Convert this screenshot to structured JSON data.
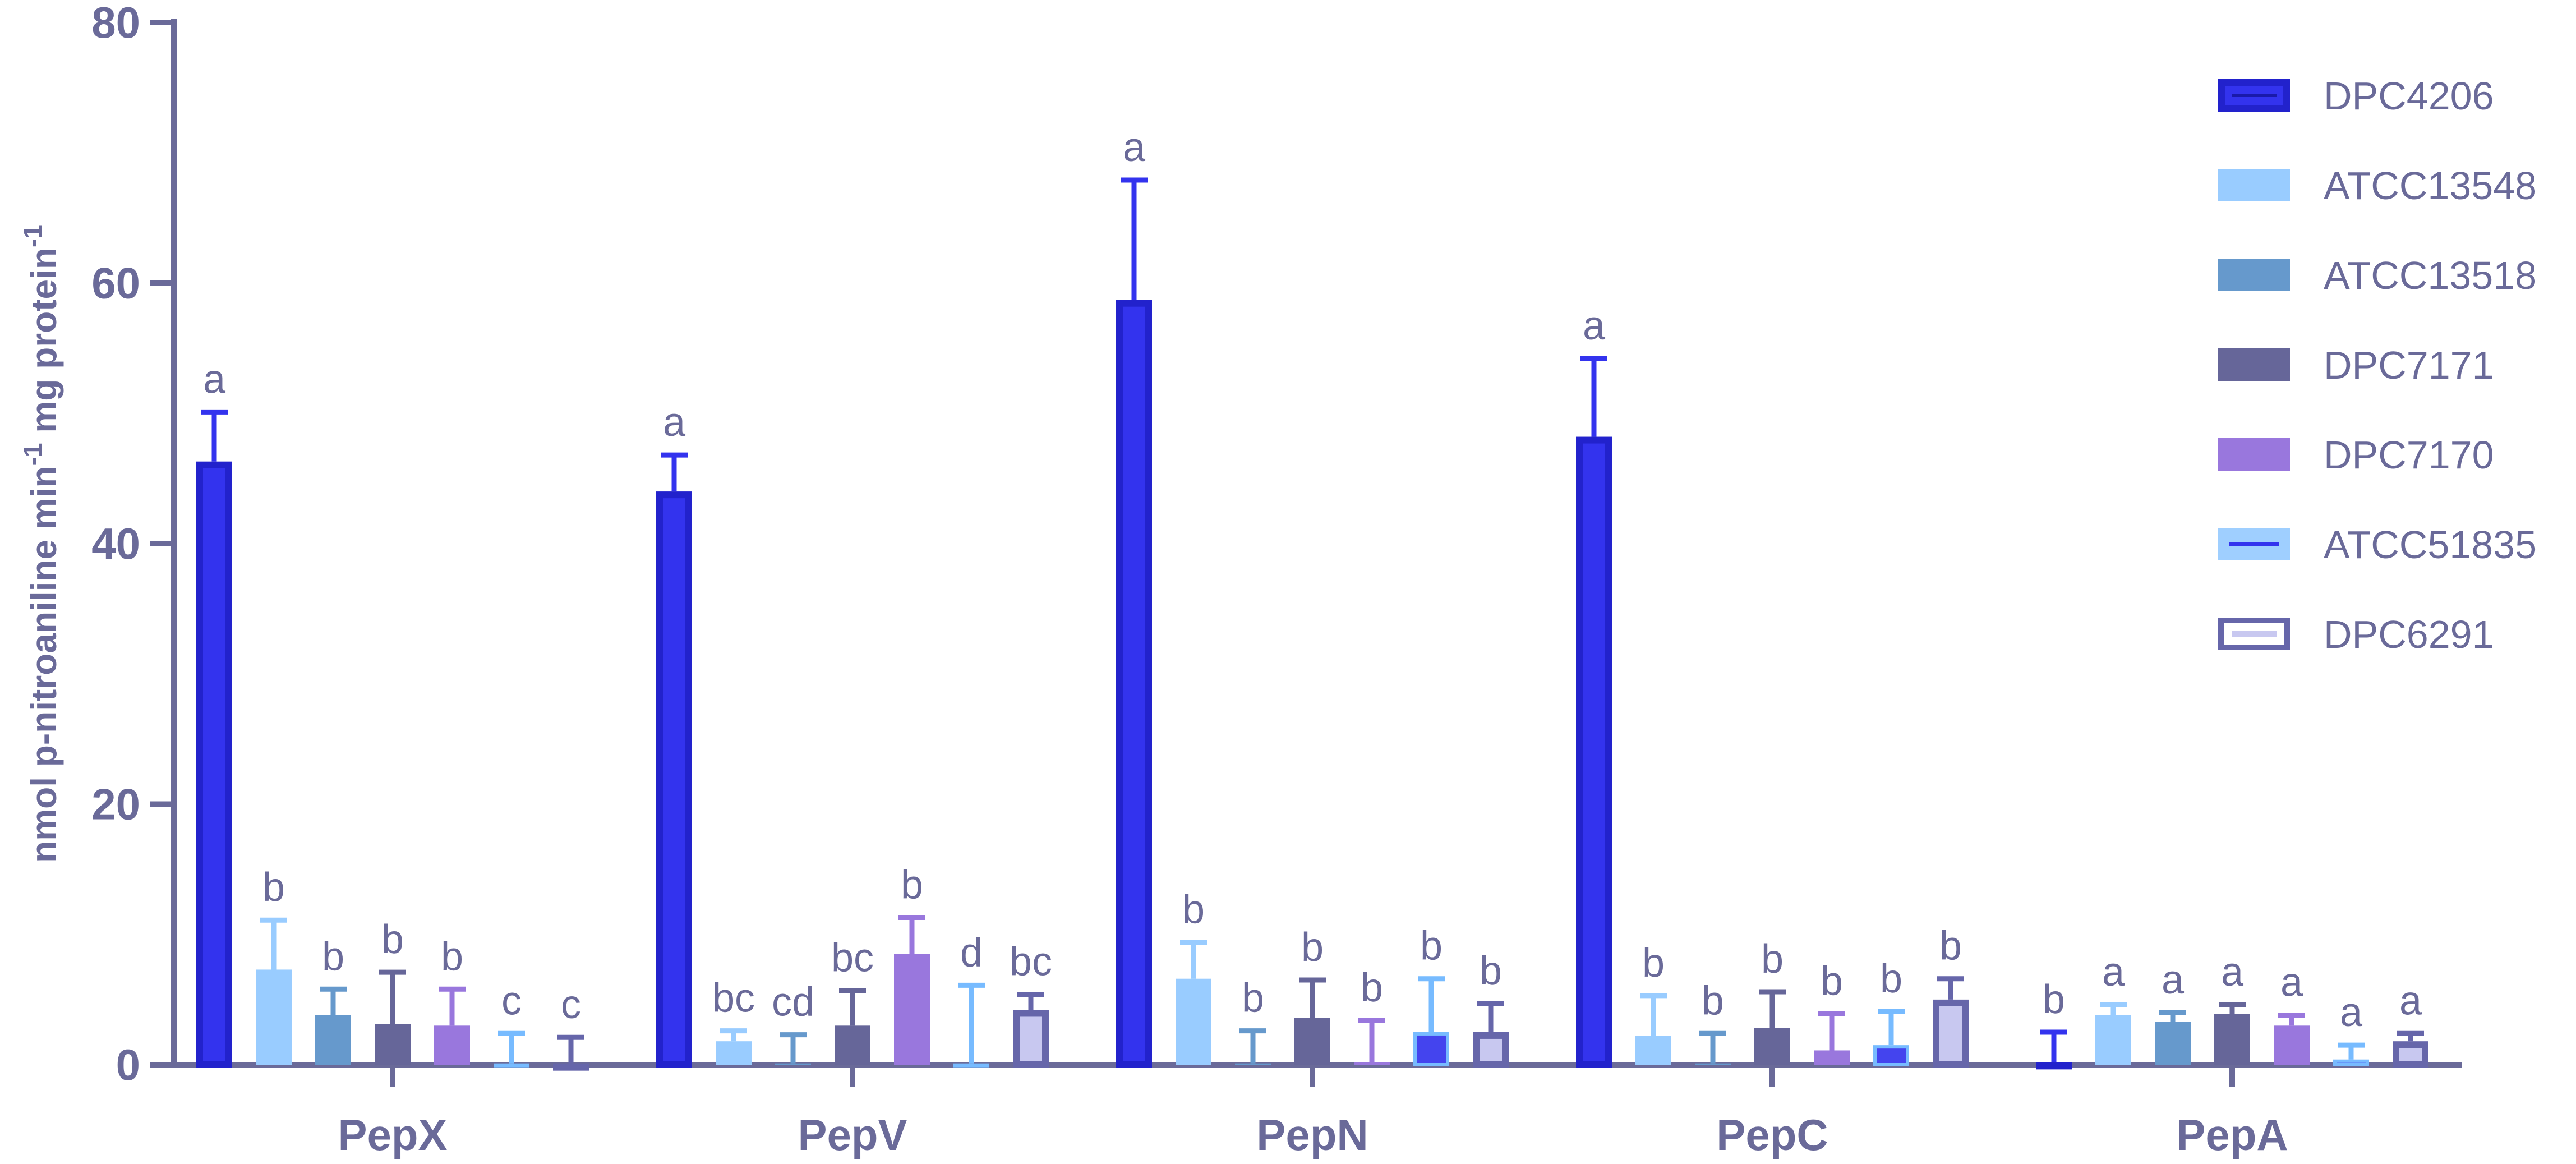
{
  "chart_data": {
    "type": "bar",
    "title": "",
    "xlabel": "",
    "ylabel": {
      "prefix": "nmol p-nitroaniline min",
      "sup1": "-1",
      "middle": " mg protein",
      "sup2": "-1"
    },
    "ylim": [
      0,
      80
    ],
    "yticks": [
      0,
      20,
      40,
      60,
      80
    ],
    "grid": false,
    "legend_position": "right",
    "categories": [
      "PepX",
      "PepV",
      "PepN",
      "PepC",
      "PepA"
    ],
    "series": [
      {
        "name": "DPC4206",
        "color": "#3333ee",
        "style": "outlined-dark",
        "values": [
          46.3,
          44.0,
          58.7,
          48.2,
          0.2
        ],
        "errors": [
          3.8,
          2.8,
          9.2,
          6.0,
          2.3
        ],
        "labels": [
          "a",
          "a",
          "a",
          "a",
          "b"
        ]
      },
      {
        "name": "ATCC13548",
        "color": "#99ccff",
        "style": "solid",
        "values": [
          7.3,
          1.8,
          6.6,
          2.2,
          3.8
        ],
        "errors": [
          3.8,
          0.8,
          2.8,
          3.1,
          0.8
        ],
        "labels": [
          "b",
          "bc",
          "b",
          "b",
          "a"
        ]
      },
      {
        "name": "ATCC13518",
        "color": "#6699cc",
        "style": "solid",
        "values": [
          3.8,
          0.1,
          0.1,
          0.1,
          3.3
        ],
        "errors": [
          2.0,
          2.2,
          2.5,
          2.3,
          0.7
        ],
        "labels": [
          "b",
          "cd",
          "b",
          "b",
          "a"
        ]
      },
      {
        "name": "DPC7171",
        "color": "#666699",
        "style": "solid",
        "values": [
          3.1,
          3.0,
          3.6,
          2.8,
          3.9
        ],
        "errors": [
          4.0,
          2.7,
          2.9,
          2.8,
          0.7
        ],
        "labels": [
          "b",
          "bc",
          "b",
          "b",
          "a"
        ]
      },
      {
        "name": "DPC7170",
        "color": "#9977dd",
        "style": "solid",
        "values": [
          3.0,
          8.5,
          0.2,
          1.1,
          3.0
        ],
        "errors": [
          2.8,
          2.8,
          3.2,
          2.8,
          0.8
        ],
        "labels": [
          "b",
          "b",
          "b",
          "b",
          "a"
        ]
      },
      {
        "name": "ATCC51835",
        "color": "#77bbff",
        "style": "outlined-line",
        "values": [
          0.1,
          0.1,
          2.5,
          1.5,
          0.4
        ],
        "errors": [
          2.3,
          6.0,
          4.1,
          2.6,
          1.1
        ],
        "labels": [
          "c",
          "d",
          "b",
          "b",
          "a"
        ]
      },
      {
        "name": "DPC6291",
        "color": "#6666aa",
        "style": "outlined-light",
        "values": [
          0.1,
          4.2,
          2.5,
          5.0,
          1.8
        ],
        "errors": [
          2.0,
          1.2,
          2.2,
          1.6,
          0.6
        ],
        "labels": [
          "c",
          "bc",
          "b",
          "b",
          "a"
        ]
      }
    ]
  }
}
